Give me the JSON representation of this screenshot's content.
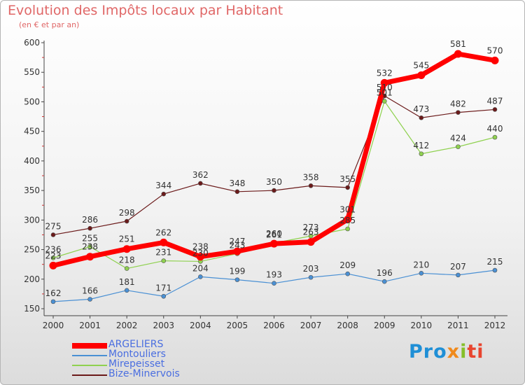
{
  "title": "Evolution des Impôts locaux par Habitant",
  "subtitle": "(en € et par an)",
  "brand": {
    "part1": "Pro",
    "part2": "x",
    "part3": "i",
    "part4": "ti"
  },
  "chart_data": {
    "type": "line",
    "x": [
      "2000",
      "2001",
      "2002",
      "2003",
      "2004",
      "2005",
      "2006",
      "2007",
      "2008",
      "2009",
      "2010",
      "2011",
      "2012"
    ],
    "ylim": [
      150,
      600
    ],
    "yticks": [
      150,
      200,
      250,
      300,
      350,
      400,
      450,
      500,
      550,
      600
    ],
    "grid": false,
    "legend": "bottom-left",
    "series": [
      {
        "name": "ARGELIERS",
        "color": "#ff0000",
        "values": [
          223,
          238,
          251,
          262,
          238,
          247,
          260,
          263,
          301,
          532,
          545,
          581,
          570
        ]
      },
      {
        "name": "Montouliers",
        "color": "#4a90d4",
        "values": [
          162,
          166,
          181,
          171,
          204,
          199,
          193,
          203,
          209,
          196,
          210,
          207,
          215
        ]
      },
      {
        "name": "Mirepeisset",
        "color": "#8fd14f",
        "values": [
          236,
          255,
          218,
          231,
          230,
          243,
          261,
          273,
          285,
          501,
          412,
          424,
          440
        ]
      },
      {
        "name": "Bize-Minervois",
        "color": "#6b1a1a",
        "values": [
          275,
          286,
          298,
          344,
          362,
          348,
          350,
          358,
          355,
          510,
          473,
          482,
          487
        ]
      }
    ]
  }
}
